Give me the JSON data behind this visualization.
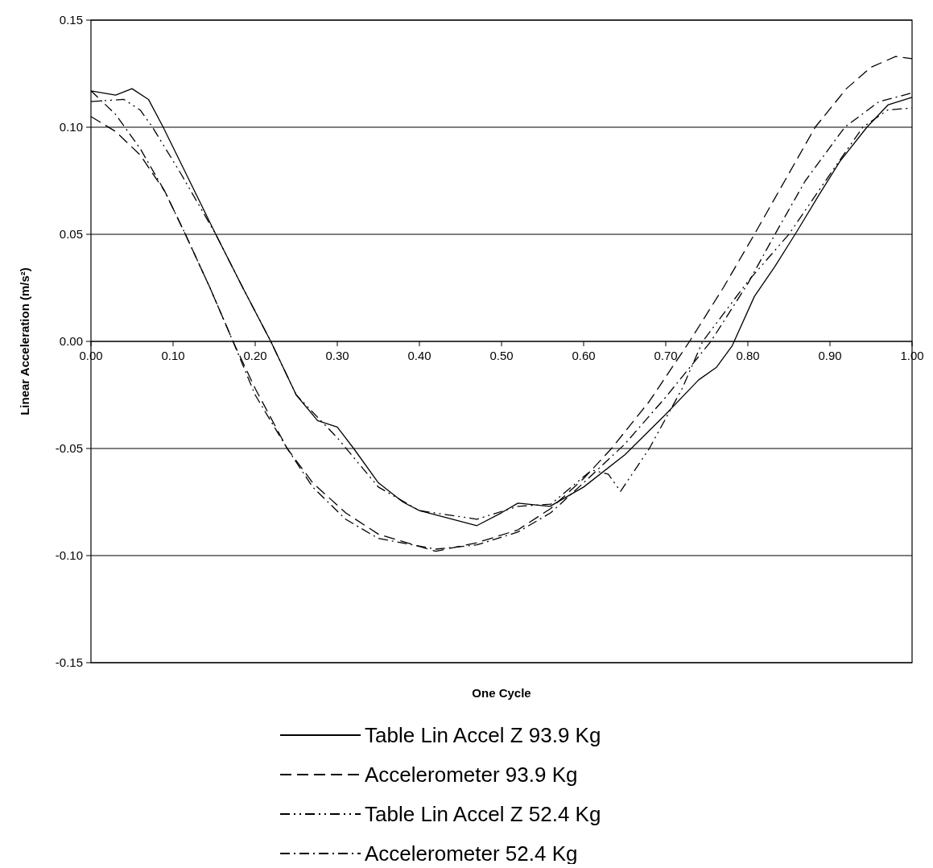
{
  "chart_data": {
    "type": "line",
    "xlabel": "One Cycle",
    "ylabel": "Linear Acceleration (m/s²)",
    "xlim": [
      0,
      1
    ],
    "ylim": [
      -0.15,
      0.15
    ],
    "xticks": [
      {
        "value": 0,
        "label": "0.00"
      },
      {
        "value": 0.1,
        "label": "0.10"
      },
      {
        "value": 0.2,
        "label": "0.20"
      },
      {
        "value": 0.3,
        "label": "0.30"
      },
      {
        "value": 0.4,
        "label": "0.40"
      },
      {
        "value": 0.5,
        "label": "0.50"
      },
      {
        "value": 0.6,
        "label": "0.60"
      },
      {
        "value": 0.7,
        "label": "0.70"
      },
      {
        "value": 0.8,
        "label": "0.80"
      },
      {
        "value": 0.9,
        "label": "0.90"
      },
      {
        "value": 1,
        "label": "1.00"
      }
    ],
    "yticks": [
      {
        "value": -0.15,
        "label": "-0.15"
      },
      {
        "value": -0.1,
        "label": "-0.10"
      },
      {
        "value": -0.05,
        "label": "-0.05"
      },
      {
        "value": 0,
        "label": "0.00"
      },
      {
        "value": 0.05,
        "label": "0.05"
      },
      {
        "value": 0.1,
        "label": "0.10"
      },
      {
        "value": 0.15,
        "label": "0.15"
      }
    ],
    "grid": "y",
    "legend": "bottom",
    "marker": "none",
    "series": [
      {
        "name": "Table Lin Accel Z 93.9 Kg",
        "color": "#000000",
        "line_style": "solid",
        "x": [
          0,
          0.03,
          0.05,
          0.07,
          0.088,
          0.12,
          0.152,
          0.185,
          0.219,
          0.25,
          0.276,
          0.3,
          0.32,
          0.35,
          0.38,
          0.4,
          0.43,
          0.47,
          0.5,
          0.52,
          0.559,
          0.6,
          0.65,
          0.7,
          0.74,
          0.762,
          0.781,
          0.808,
          0.833,
          0.86,
          0.886,
          0.912,
          0.945,
          0.971,
          1
        ],
        "values": [
          0.117,
          0.115,
          0.118,
          0.113,
          0.1,
          0.075,
          0.05,
          0.025,
          0,
          -0.025,
          -0.037,
          -0.04,
          -0.05,
          -0.066,
          -0.075,
          -0.079,
          -0.082,
          -0.086,
          -0.08,
          -0.0755,
          -0.077,
          -0.068,
          -0.053,
          -0.034,
          -0.018,
          -0.012,
          -0.002,
          0.021,
          0.035,
          0.0515,
          0.068,
          0.084,
          0.1,
          0.1105,
          0.114
        ]
      },
      {
        "name": "Accelerometer 93.9 Kg",
        "color": "#000000",
        "line_style": "dashed",
        "x": [
          0,
          0.03,
          0.06,
          0.09,
          0.115,
          0.145,
          0.173,
          0.2,
          0.239,
          0.27,
          0.31,
          0.35,
          0.42,
          0.47,
          0.52,
          0.56,
          0.6,
          0.634,
          0.68,
          0.729,
          0.77,
          0.808,
          0.845,
          0.882,
          0.92,
          0.95,
          0.98,
          1
        ],
        "values": [
          0.105,
          0.098,
          0.087,
          0.07,
          0.05,
          0.025,
          0,
          -0.022,
          -0.05,
          -0.066,
          -0.08,
          -0.09,
          -0.098,
          -0.094,
          -0.088,
          -0.078,
          -0.064,
          -0.05,
          -0.028,
          0,
          0.025,
          0.05,
          0.075,
          0.1,
          0.118,
          0.128,
          0.133,
          0.132
        ]
      },
      {
        "name": "Table Lin Accel Z 52.4 Kg",
        "color": "#000000",
        "line_style": "dashdotdot",
        "x": [
          0,
          0.04,
          0.06,
          0.075,
          0.11,
          0.152,
          0.185,
          0.219,
          0.25,
          0.3,
          0.35,
          0.4,
          0.47,
          0.52,
          0.56,
          0.61,
          0.63,
          0.645,
          0.68,
          0.72,
          0.745,
          0.8,
          0.85,
          0.9,
          0.94,
          0.97,
          1
        ],
        "values": [
          0.112,
          0.113,
          0.108,
          0.1,
          0.078,
          0.05,
          0.025,
          0,
          -0.025,
          -0.045,
          -0.068,
          -0.079,
          -0.083,
          -0.077,
          -0.076,
          -0.06,
          -0.062,
          -0.07,
          -0.05,
          -0.022,
          0,
          0.028,
          0.05,
          0.078,
          0.1,
          0.108,
          0.109
        ]
      },
      {
        "name": "Accelerometer 52.4 Kg",
        "color": "#000000",
        "line_style": "dashdot",
        "x": [
          0,
          0.03,
          0.06,
          0.09,
          0.115,
          0.145,
          0.173,
          0.2,
          0.239,
          0.27,
          0.31,
          0.35,
          0.42,
          0.47,
          0.52,
          0.56,
          0.6,
          0.65,
          0.7,
          0.755,
          0.8,
          0.833,
          0.87,
          0.918,
          0.96,
          1
        ],
        "values": [
          0.117,
          0.106,
          0.09,
          0.07,
          0.05,
          0.025,
          0,
          -0.025,
          -0.05,
          -0.068,
          -0.083,
          -0.092,
          -0.097,
          -0.095,
          -0.089,
          -0.08,
          -0.066,
          -0.048,
          -0.026,
          0,
          0.027,
          0.05,
          0.075,
          0.1,
          0.112,
          0.116
        ]
      }
    ]
  }
}
